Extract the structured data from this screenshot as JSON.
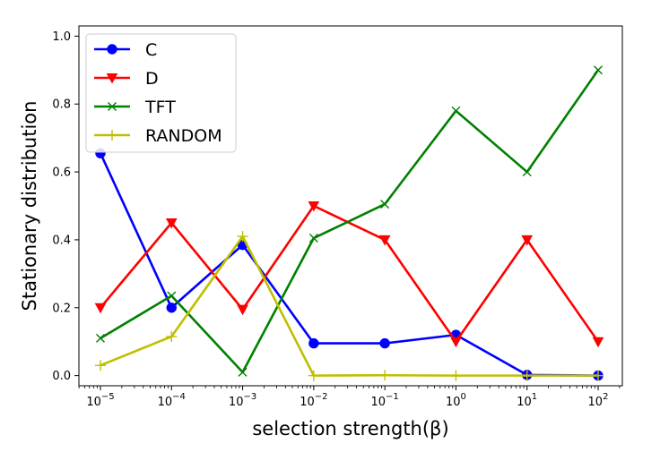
{
  "chart_data": {
    "type": "line",
    "x": [
      "1e-5",
      "1e-4",
      "1e-3",
      "1e-2",
      "1e-1",
      "1e0",
      "1e1",
      "1e2"
    ],
    "x_tick_labels": [
      {
        "base": "10",
        "exp": "−5"
      },
      {
        "base": "10",
        "exp": "−4"
      },
      {
        "base": "10",
        "exp": "−3"
      },
      {
        "base": "10",
        "exp": "−2"
      },
      {
        "base": "10",
        "exp": "−1"
      },
      {
        "base": "10",
        "exp": "0"
      },
      {
        "base": "10",
        "exp": "1"
      },
      {
        "base": "10",
        "exp": "2"
      }
    ],
    "xscale": "log",
    "xlabel": "selection strength(β)",
    "ylabel": "Stationary distribution",
    "ylim": [
      -0.03,
      1.03
    ],
    "yticks": [
      "0.0",
      "0.2",
      "0.4",
      "0.6",
      "0.8",
      "1.0"
    ],
    "grid": false,
    "legend_position": "upper-left",
    "series": [
      {
        "name": "C",
        "color": "#0000ff",
        "marker": "circle",
        "values": [
          0.655,
          0.2,
          0.385,
          0.095,
          0.095,
          0.12,
          0.002,
          0.0
        ]
      },
      {
        "name": "D",
        "color": "#ff0000",
        "marker": "triangle-down",
        "values": [
          0.2,
          0.45,
          0.195,
          0.5,
          0.4,
          0.1,
          0.4,
          0.1
        ]
      },
      {
        "name": "TFT",
        "color": "#008000",
        "marker": "x",
        "values": [
          0.11,
          0.235,
          0.01,
          0.405,
          0.505,
          0.78,
          0.6,
          0.9
        ]
      },
      {
        "name": "RANDOM",
        "color": "#bfbf00",
        "marker": "plus",
        "values": [
          0.03,
          0.115,
          0.41,
          0.0,
          0.001,
          0.0,
          0.0,
          0.0
        ]
      }
    ]
  }
}
